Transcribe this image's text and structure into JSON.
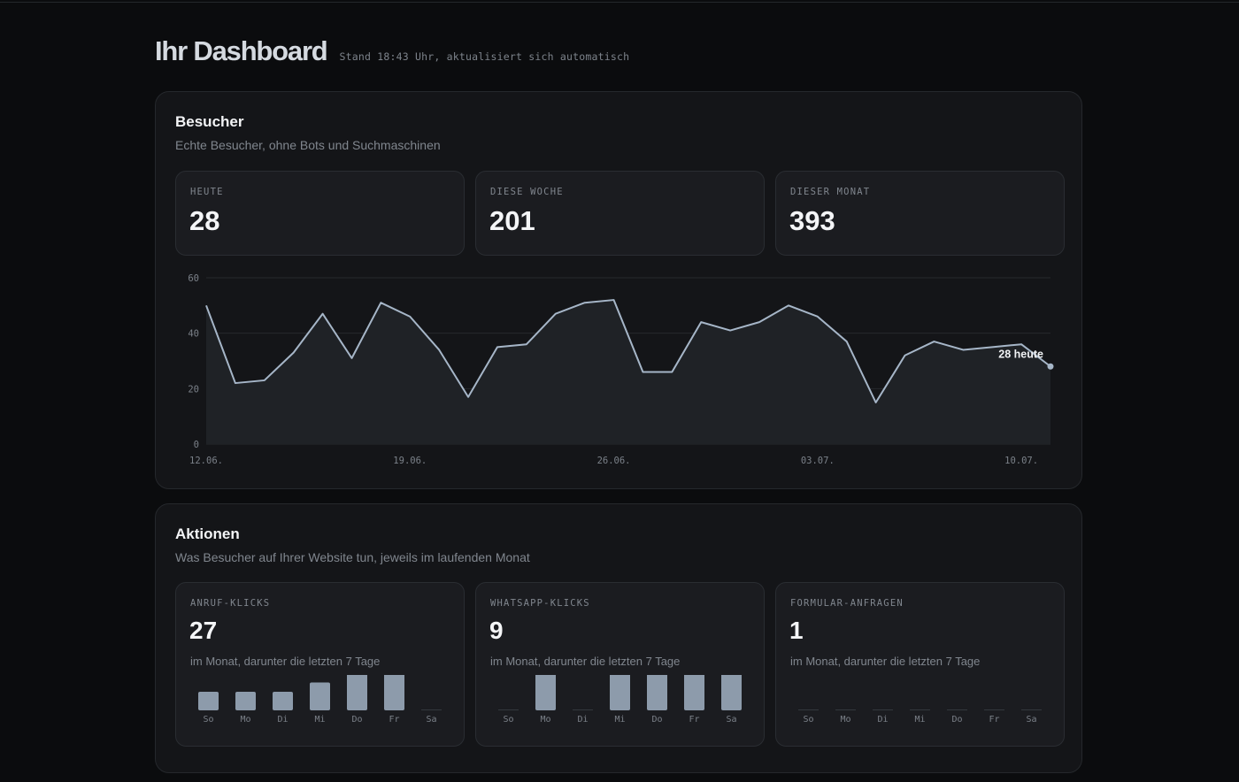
{
  "header": {
    "title": "Ihr Dashboard",
    "stamp": "Stand 18:43 Uhr, aktualisiert sich automatisch"
  },
  "visitors": {
    "title": "Besucher",
    "subtitle": "Echte Besucher, ohne Bots und Suchmaschinen",
    "stats": [
      {
        "label": "HEUTE",
        "value": "28"
      },
      {
        "label": "DIESE WOCHE",
        "value": "201"
      },
      {
        "label": "DIESER MONAT",
        "value": "393"
      }
    ]
  },
  "chart_data": {
    "type": "area",
    "ylim": [
      0,
      60
    ],
    "yticks": [
      0,
      20,
      40,
      60
    ],
    "x_labels": [
      "12.06.",
      "19.06.",
      "26.06.",
      "03.07.",
      "10.07."
    ],
    "x_label_index": [
      0,
      7,
      14,
      21,
      28
    ],
    "values": [
      50,
      22,
      23,
      33,
      47,
      31,
      51,
      46,
      34,
      17,
      35,
      36,
      47,
      51,
      52,
      26,
      26,
      44,
      41,
      44,
      50,
      46,
      37,
      15,
      32,
      37,
      34,
      35,
      36,
      28
    ],
    "annotation": "28 heute",
    "grid": true,
    "colors": {
      "line": "#a6b6c8",
      "fill": "#1f2226",
      "grid": "#26292d"
    }
  },
  "actions": {
    "title": "Aktionen",
    "subtitle": "Was Besucher auf Ihrer Website tun, jeweils im laufenden Monat",
    "days": [
      "So",
      "Mo",
      "Di",
      "Mi",
      "Do",
      "Fr",
      "Sa"
    ],
    "bar_max": 2,
    "bar_color": "#8d9bab",
    "cards": [
      {
        "label": "ANRUF-KLICKS",
        "value": "27",
        "note": "im Monat, darunter die letzten 7 Tage",
        "bars": [
          1,
          1,
          1,
          1.5,
          2,
          2,
          0
        ]
      },
      {
        "label": "WHATSAPP-KLICKS",
        "value": "9",
        "note": "im Monat, darunter die letzten 7 Tage",
        "bars": [
          0,
          2,
          0,
          2,
          2,
          2,
          2
        ]
      },
      {
        "label": "FORMULAR-ANFRAGEN",
        "value": "1",
        "note": "im Monat, darunter die letzten 7 Tage",
        "bars": [
          0,
          0,
          0,
          0,
          0,
          0,
          0
        ]
      }
    ]
  }
}
